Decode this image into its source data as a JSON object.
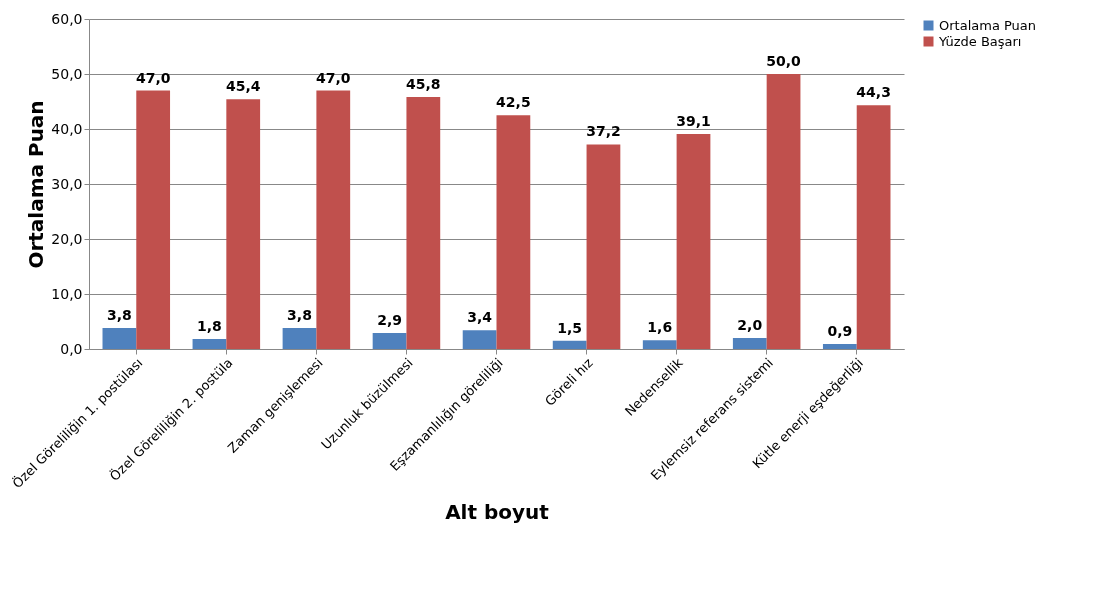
{
  "chart_data": {
    "type": "bar",
    "xlabel": "Alt boyut",
    "ylabel": "Ortalama Puan",
    "categories": [
      "Özel Göreliliğin 1. postülası",
      "Özel Göreliliğin 2. postüla",
      "Zaman genişlemesi",
      "Uzunluk büzülmesi",
      "Eşzamanlılığın göreliliği",
      "Göreli hız",
      "Nedensellik",
      "Eylemsiz referans sistemi",
      "Kütle enerji eşdeğerliği"
    ],
    "series": [
      {
        "name": "Ortalama Puan",
        "color": "#4f81bd",
        "values": [
          3.8,
          1.8,
          3.8,
          2.9,
          3.4,
          1.5,
          1.6,
          2.0,
          0.9
        ],
        "value_labels": [
          "3,8",
          "1,8",
          "3,8",
          "2,9",
          "3,4",
          "1,5",
          "1,6",
          "2,0",
          "0,9"
        ]
      },
      {
        "name": "Yüzde Başarı",
        "color": "#c0504d",
        "values": [
          47.0,
          45.4,
          47.0,
          45.8,
          42.5,
          37.2,
          39.1,
          50.0,
          44.3
        ],
        "value_labels": [
          "47,0",
          "45,4",
          "47,0",
          "45,8",
          "42,5",
          "37,2",
          "39,1",
          "50,0",
          "44,3"
        ]
      }
    ],
    "ylim": [
      0,
      60
    ],
    "yticks": [
      {
        "value": 0,
        "label": "0,0"
      },
      {
        "value": 10,
        "label": "10,0"
      },
      {
        "value": 20,
        "label": "20,0"
      },
      {
        "value": 30,
        "label": "30,0"
      },
      {
        "value": 40,
        "label": "40,0"
      },
      {
        "value": 50,
        "label": "50,0"
      },
      {
        "value": 60,
        "label": "60,0"
      }
    ],
    "grid": "y",
    "legend": "right"
  }
}
